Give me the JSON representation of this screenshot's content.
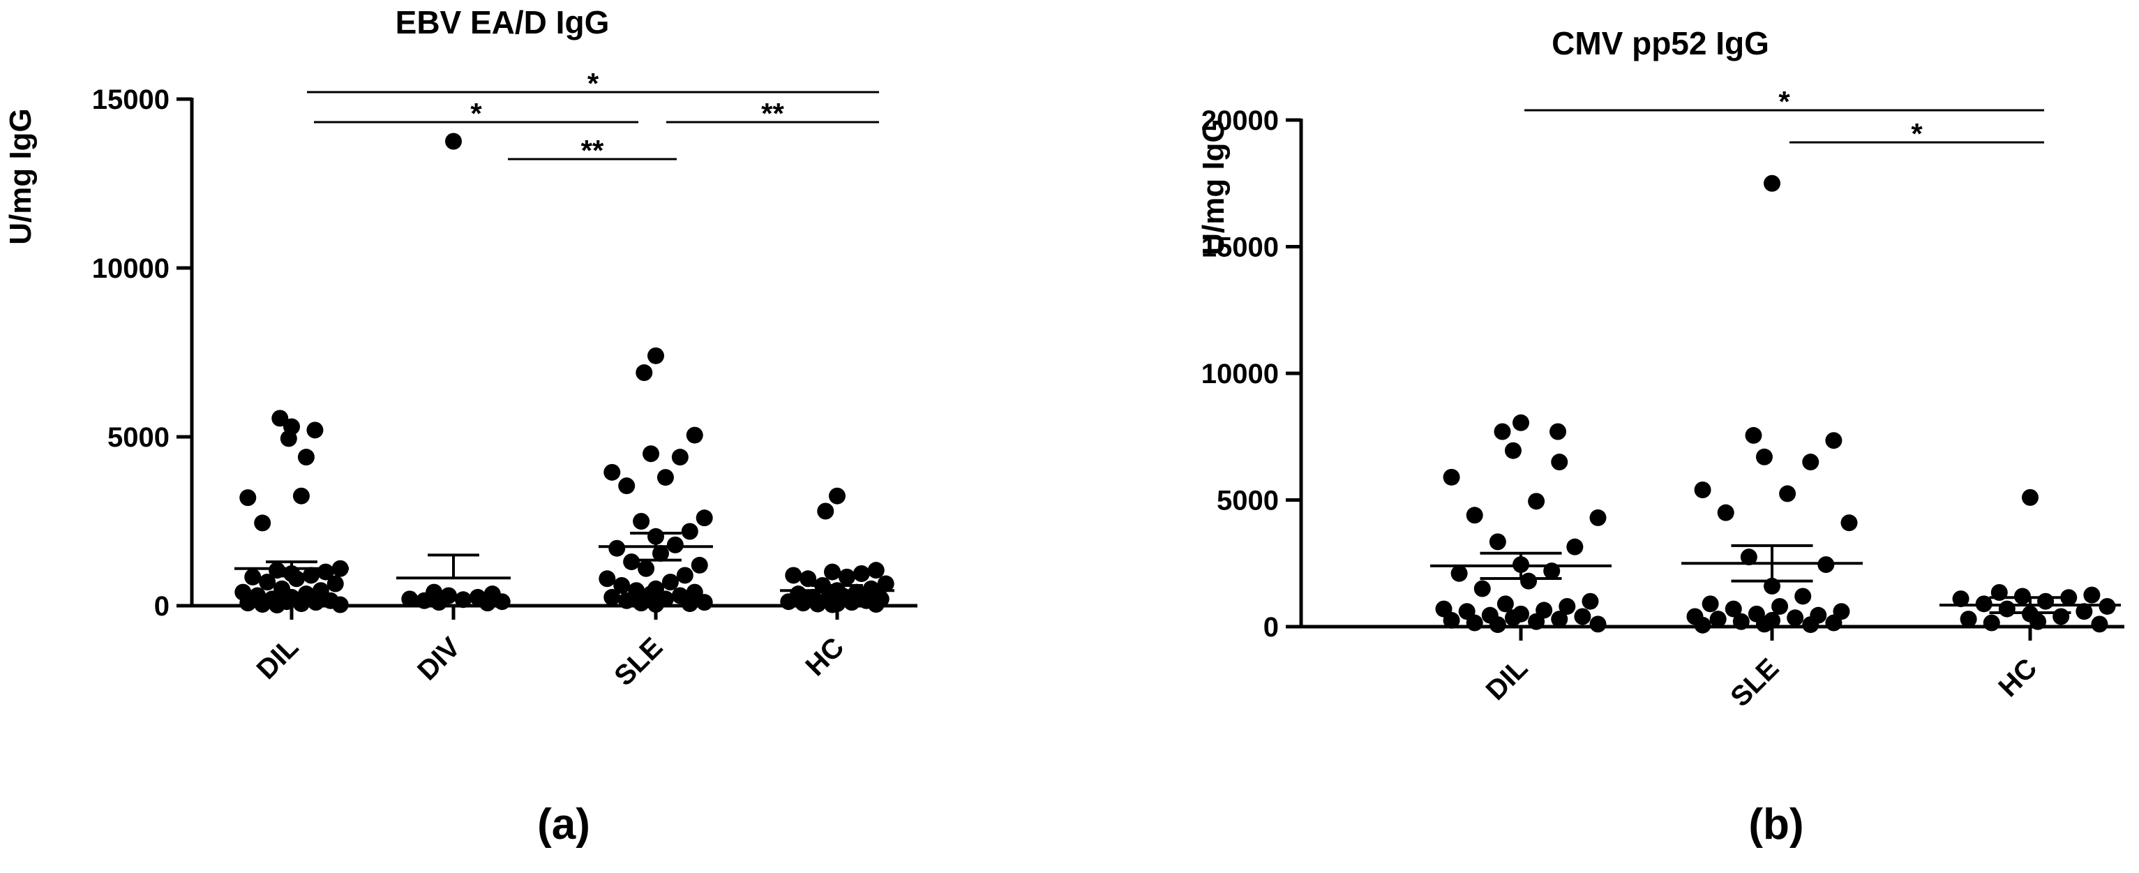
{
  "figure": {
    "panel_labels": [
      "(a)",
      "(b)"
    ]
  },
  "chart_data": [
    {
      "type": "scatter",
      "title": "EBV EA/D IgG",
      "ylabel": "U/mg IgG",
      "xlabel": "",
      "ylim": [
        0,
        15000
      ],
      "yticks": [
        0,
        5000,
        10000,
        15000
      ],
      "categories": [
        "DIL",
        "DIV",
        "SLE",
        "HC"
      ],
      "grid": false,
      "groups": [
        {
          "name": "DIL",
          "mean": 1100,
          "sem_upper": 1300,
          "sem_lower": 880,
          "points": [
            5300,
            5550,
            5200,
            4950,
            4400,
            3200,
            3250,
            2450,
            1100,
            1050,
            1000,
            950,
            900,
            850,
            800,
            700,
            650,
            500,
            450,
            400,
            350,
            300,
            250,
            200,
            150,
            120,
            100,
            80,
            60,
            40,
            30,
            20
          ]
        },
        {
          "name": "DIV",
          "mean": 820,
          "sem_upper": 1500,
          "sem_lower": null,
          "points": [
            13750,
            400,
            350,
            300,
            250,
            200,
            180,
            150,
            120,
            100,
            80
          ]
        },
        {
          "name": "SLE",
          "mean": 1750,
          "sem_upper": 2150,
          "sem_lower": 1350,
          "points": [
            7400,
            6900,
            5050,
            4500,
            4400,
            3950,
            3800,
            3550,
            2600,
            2500,
            2200,
            2050,
            1800,
            1700,
            1550,
            1300,
            1200,
            1100,
            900,
            800,
            700,
            600,
            500,
            450,
            400,
            350,
            300,
            250,
            200,
            150,
            100,
            80,
            60,
            40
          ]
        },
        {
          "name": "HC",
          "mean": 450,
          "sem_upper": 600,
          "sem_lower": 300,
          "points": [
            3250,
            2800,
            1050,
            1000,
            950,
            900,
            850,
            800,
            650,
            600,
            500,
            450,
            400,
            350,
            300,
            250,
            200,
            180,
            150,
            120,
            100,
            80,
            60,
            50,
            40,
            30
          ]
        }
      ],
      "significance": [
        {
          "from": "DIL",
          "to": "HC",
          "label": "*"
        },
        {
          "from": "DIL",
          "to": "SLE",
          "label": "*"
        },
        {
          "from": "SLE",
          "to": "HC",
          "label": "**"
        },
        {
          "from": "DIV",
          "to": "SLE",
          "label": "**"
        }
      ]
    },
    {
      "type": "scatter",
      "title": "CMV pp52 IgG",
      "ylabel": "U/mg IgG",
      "xlabel": "",
      "ylim": [
        0,
        20000
      ],
      "yticks": [
        0,
        5000,
        10000,
        15000,
        20000
      ],
      "categories": [
        "DIL",
        "SLE",
        "HC"
      ],
      "grid": false,
      "groups": [
        {
          "name": "DIL",
          "mean": 2400,
          "sem_upper": 2900,
          "sem_lower": 1900,
          "points": [
            8050,
            7700,
            7700,
            6950,
            6500,
            5900,
            4950,
            4400,
            4300,
            3350,
            3150,
            2450,
            2200,
            2100,
            1800,
            1500,
            1000,
            900,
            800,
            700,
            650,
            600,
            500,
            450,
            400,
            350,
            300,
            250,
            200,
            150,
            100,
            80
          ]
        },
        {
          "name": "SLE",
          "mean": 2500,
          "sem_upper": 3200,
          "sem_lower": 1800,
          "points": [
            17500,
            7550,
            7350,
            6700,
            6500,
            5400,
            5250,
            4500,
            4100,
            2750,
            2450,
            1600,
            1200,
            900,
            800,
            700,
            600,
            500,
            450,
            400,
            350,
            300,
            250,
            200,
            150,
            100,
            80,
            60
          ]
        },
        {
          "name": "HC",
          "mean": 850,
          "sem_upper": 1150,
          "sem_lower": 550,
          "points": [
            5100,
            1350,
            1250,
            1200,
            1150,
            1100,
            1000,
            900,
            800,
            700,
            600,
            500,
            400,
            300,
            200,
            150,
            100
          ]
        }
      ],
      "significance": [
        {
          "from": "DIL",
          "to": "HC",
          "label": "*"
        },
        {
          "from": "SLE",
          "to": "HC",
          "label": "*"
        }
      ]
    }
  ]
}
